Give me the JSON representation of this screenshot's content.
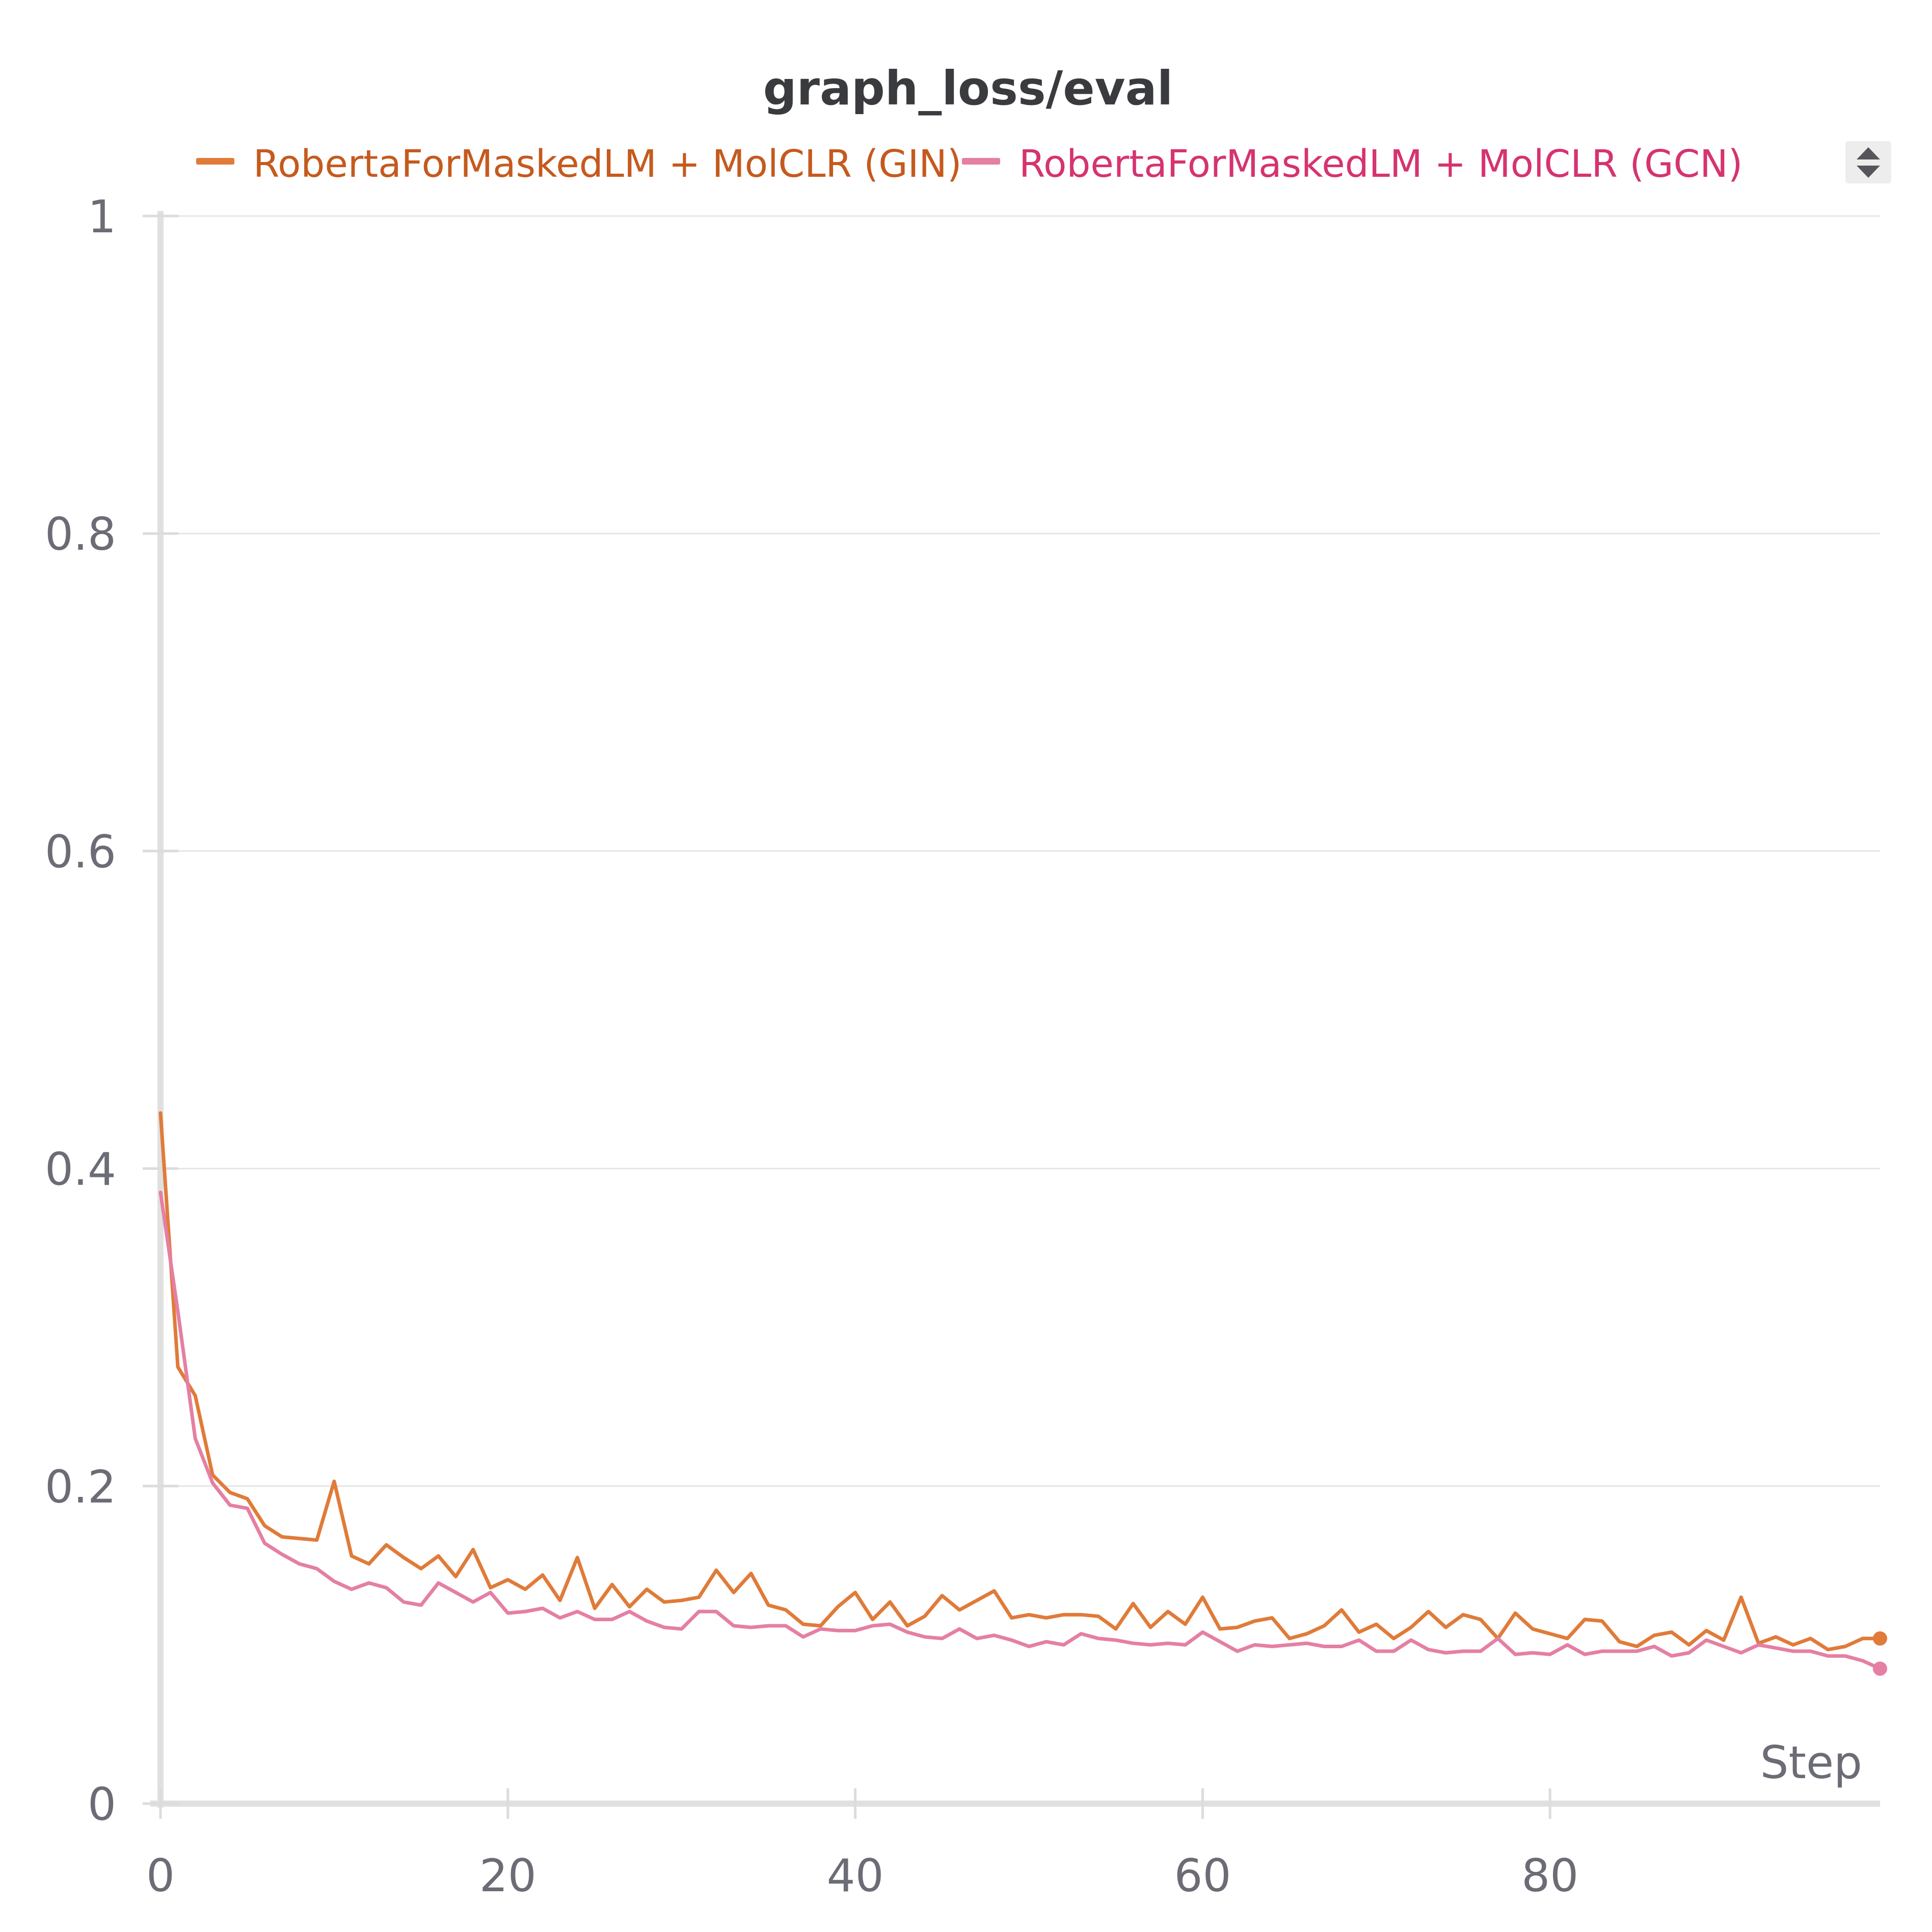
{
  "chart_data": {
    "type": "line",
    "title": "graph_loss/eval",
    "xlabel": "Step",
    "ylabel": "",
    "xlim": [
      0,
      99
    ],
    "ylim": [
      0,
      1
    ],
    "x_ticks": [
      "0",
      "20",
      "40",
      "60",
      "80"
    ],
    "x_tick_values": [
      0,
      20,
      40,
      60,
      80
    ],
    "y_ticks": [
      "0",
      "0.2",
      "0.4",
      "0.6",
      "0.8",
      "1"
    ],
    "y_tick_values": [
      0,
      0.2,
      0.4,
      0.6,
      0.8,
      1
    ],
    "grid": true,
    "legend_position": "top",
    "series": [
      {
        "name": "RobertaForMaskedLM + MolCLR (GIN)",
        "color": "#e07b39",
        "text_color": "#c55a1e",
        "values": [
          0.435,
          0.275,
          0.257,
          0.207,
          0.196,
          0.192,
          0.175,
          0.168,
          0.167,
          0.166,
          0.203,
          0.156,
          0.151,
          0.163,
          0.155,
          0.148,
          0.156,
          0.143,
          0.16,
          0.136,
          0.141,
          0.135,
          0.144,
          0.128,
          0.155,
          0.123,
          0.138,
          0.124,
          0.135,
          0.127,
          0.128,
          0.13,
          0.147,
          0.133,
          0.145,
          0.125,
          0.122,
          0.113,
          0.112,
          0.124,
          0.133,
          0.116,
          0.127,
          0.112,
          0.118,
          0.131,
          0.122,
          0.128,
          0.134,
          0.117,
          0.119,
          0.117,
          0.119,
          0.119,
          0.118,
          0.11,
          0.126,
          0.111,
          0.121,
          0.113,
          0.13,
          0.11,
          0.111,
          0.115,
          0.117,
          0.104,
          0.107,
          0.112,
          0.122,
          0.108,
          0.113,
          0.104,
          0.111,
          0.121,
          0.111,
          0.119,
          0.116,
          0.104,
          0.12,
          0.11,
          0.107,
          0.104,
          0.116,
          0.115,
          0.102,
          0.099,
          0.106,
          0.108,
          0.1,
          0.109,
          0.103,
          0.13,
          0.101,
          0.105,
          0.1,
          0.104,
          0.097,
          0.099,
          0.104,
          0.104
        ],
        "last_value": 0.104
      },
      {
        "name": "RobertaForMaskedLM + MolCLR (GCN)",
        "color": "#e57fa4",
        "text_color": "#d63370",
        "values": [
          0.385,
          0.31,
          0.23,
          0.202,
          0.188,
          0.186,
          0.164,
          0.157,
          0.151,
          0.148,
          0.14,
          0.135,
          0.139,
          0.136,
          0.127,
          0.125,
          0.139,
          0.133,
          0.127,
          0.133,
          0.12,
          0.121,
          0.123,
          0.117,
          0.121,
          0.116,
          0.116,
          0.121,
          0.115,
          0.111,
          0.11,
          0.121,
          0.121,
          0.112,
          0.111,
          0.112,
          0.112,
          0.105,
          0.11,
          0.109,
          0.109,
          0.112,
          0.113,
          0.108,
          0.105,
          0.104,
          0.11,
          0.104,
          0.106,
          0.103,
          0.099,
          0.102,
          0.1,
          0.107,
          0.104,
          0.103,
          0.101,
          0.1,
          0.101,
          0.1,
          0.108,
          0.102,
          0.096,
          0.1,
          0.099,
          0.1,
          0.101,
          0.099,
          0.099,
          0.103,
          0.096,
          0.096,
          0.103,
          0.097,
          0.095,
          0.096,
          0.096,
          0.104,
          0.094,
          0.095,
          0.094,
          0.1,
          0.094,
          0.096,
          0.096,
          0.096,
          0.099,
          0.093,
          0.095,
          0.103,
          0.099,
          0.095,
          0.1,
          0.098,
          0.096,
          0.096,
          0.093,
          0.093,
          0.09,
          0.085
        ],
        "last_value": 0.085
      }
    ]
  },
  "controls": {
    "legend_scroll_icon": "up-down-arrows-icon"
  }
}
